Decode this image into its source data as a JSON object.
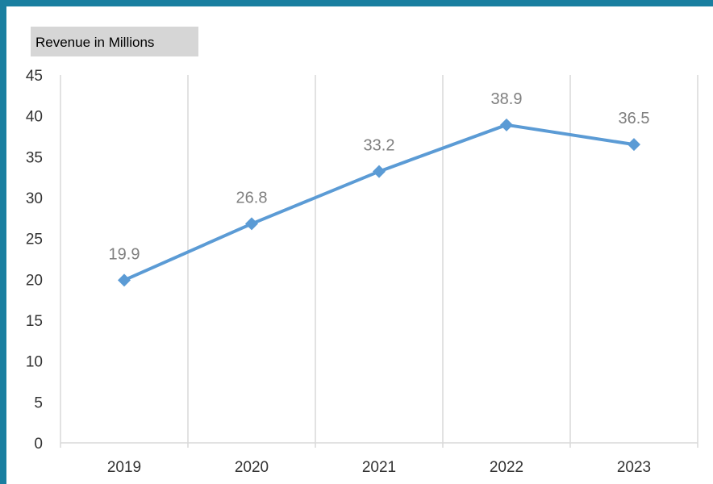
{
  "chart_data": {
    "type": "line",
    "title": "Revenue in Millions",
    "categories": [
      "2019",
      "2020",
      "2021",
      "2022",
      "2023"
    ],
    "series": [
      {
        "values": [
          19.9,
          26.8,
          33.2,
          38.9,
          36.5
        ]
      }
    ],
    "data_labels": [
      "19.9",
      "26.8",
      "33.2",
      "38.9",
      "36.5"
    ],
    "ylim": [
      0,
      45
    ],
    "yticks": [
      0,
      5,
      10,
      15,
      20,
      25,
      30,
      35,
      40,
      45
    ],
    "grid": "vertical",
    "marker": "diamond",
    "colors": {
      "line": "#5b9bd5",
      "grid": "#d9d9d9",
      "frame": "#1a7fa0",
      "title_bg": "#d6d6d6",
      "label": "#7f7f7f"
    }
  }
}
